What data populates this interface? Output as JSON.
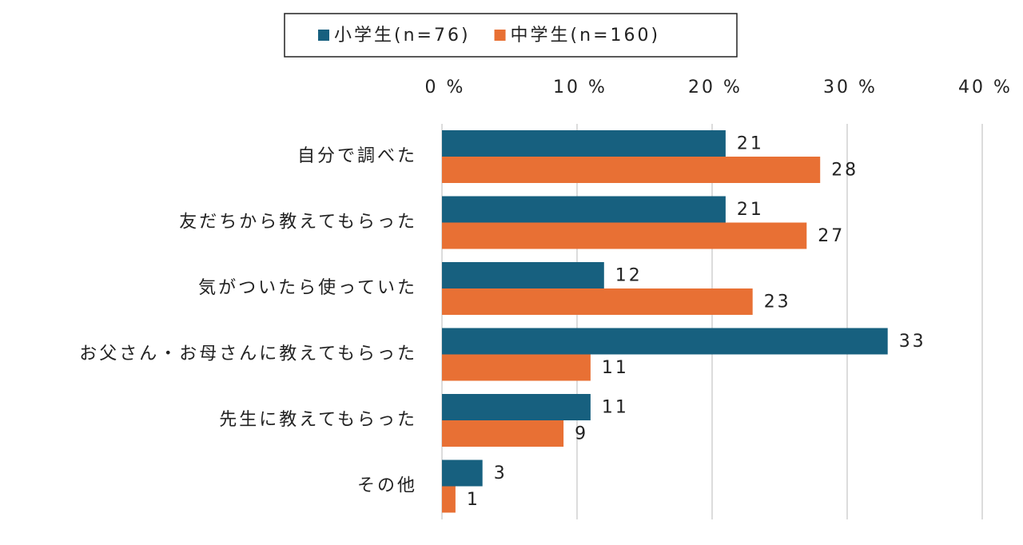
{
  "chart_data": {
    "type": "hbar",
    "categories": [
      "自分で調べた",
      "友だちから教えてもらった",
      "気がついたら使っていた",
      "お父さん・お母さんに教えてもらった",
      "先生に教えてもらった",
      "その他"
    ],
    "series": [
      {
        "name": "小学生(n=76)",
        "color": "#17607f",
        "values": [
          21,
          21,
          12,
          33,
          11,
          3
        ]
      },
      {
        "name": "中学生(n=160)",
        "color": "#e87034",
        "values": [
          28,
          27,
          23,
          11,
          9,
          1
        ]
      }
    ],
    "xlim": [
      0,
      40
    ],
    "xticks": [
      {
        "value": 0,
        "label": "0 %"
      },
      {
        "value": 10,
        "label": "10 %"
      },
      {
        "value": 20,
        "label": "20 %"
      },
      {
        "value": 30,
        "label": "30 %"
      },
      {
        "value": 40,
        "label": "40 %"
      }
    ],
    "grid": true,
    "legend": "top"
  }
}
